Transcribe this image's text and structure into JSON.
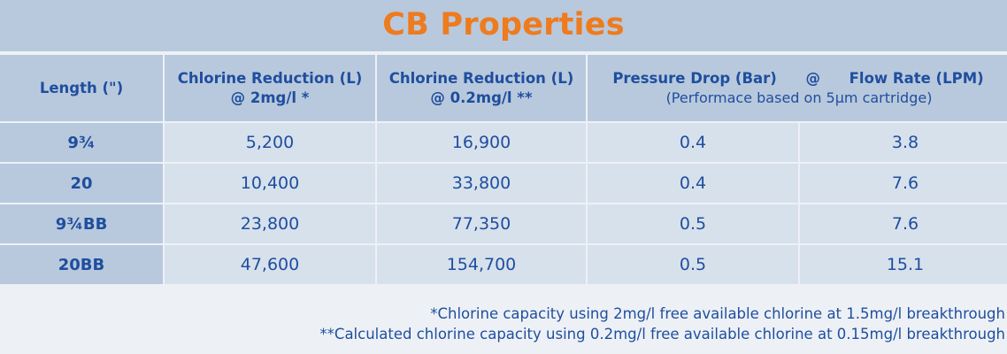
{
  "title": "CB Properties",
  "headers": {
    "length": "Length (\")",
    "chlorine_1_line1": "Chlorine Reduction (L)",
    "chlorine_1_line2": "@ 2mg/l *",
    "chlorine_2_line1": "Chlorine Reduction (L)",
    "chlorine_2_line2": "@ 0.2mg/l **",
    "pressure_drop": "Pressure Drop (Bar)",
    "at_sign": "@",
    "flow_rate": "Flow Rate (LPM)",
    "performance_note": "(Performace based on 5µm cartridge)"
  },
  "rows": [
    {
      "length": "9¾",
      "chlorine_2mg": "5,200",
      "chlorine_02mg": "16,900",
      "pressure_drop": "0.4",
      "flow_rate": "3.8"
    },
    {
      "length": "20",
      "chlorine_2mg": "10,400",
      "chlorine_02mg": "33,800",
      "pressure_drop": "0.4",
      "flow_rate": "7.6"
    },
    {
      "length": "9¾BB",
      "chlorine_2mg": "23,800",
      "chlorine_02mg": "77,350",
      "pressure_drop": "0.5",
      "flow_rate": "7.6"
    },
    {
      "length": "20BB",
      "chlorine_2mg": "47,600",
      "chlorine_02mg": "154,700",
      "pressure_drop": "0.5",
      "flow_rate": "15.1"
    }
  ],
  "footnotes": [
    "*Chlorine capacity using 2mg/l free available chlorine at 1.5mg/l breakthrough",
    "**Calculated chlorine capacity using 0.2mg/l free available chlorine at 0.15mg/l breakthrough"
  ],
  "colors": {
    "title_orange": "#ee7b1e",
    "text_blue": "#1f4e9e",
    "header_bg": "#b8c9dd",
    "cell_bg": "#d7e1ec",
    "page_bg": "#edf1f6"
  }
}
